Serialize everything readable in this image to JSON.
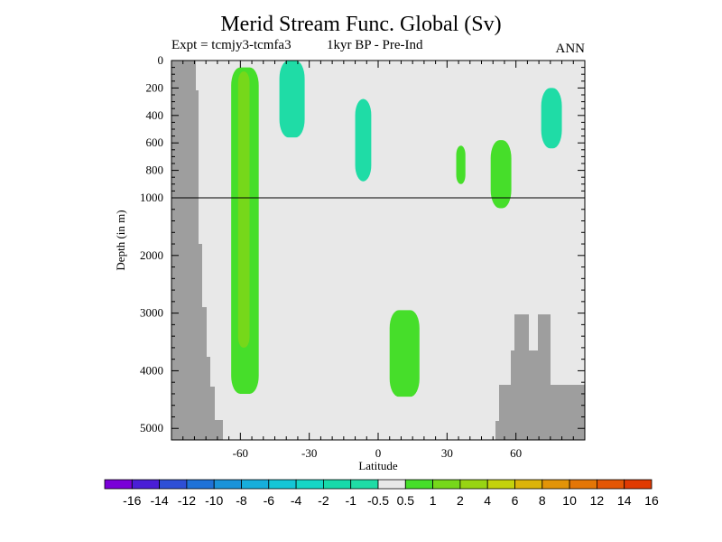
{
  "chart_data": {
    "type": "heatmap",
    "title": "Merid Stream Func. Global (Sv)",
    "subtitle_left": "Expt = tcmjy3-tcmfa3",
    "subtitle_mid": "1kyr BP - Pre-Ind",
    "subtitle_right": "ANN",
    "xlabel": "Latitude",
    "ylabel": "Depth (in m)",
    "xlim": [
      -90,
      90
    ],
    "x_ticks": [
      -60,
      -30,
      0,
      30,
      60
    ],
    "y_upper": {
      "range": [
        0,
        1000
      ],
      "ticks": [
        0,
        200,
        400,
        600,
        800,
        1000
      ]
    },
    "y_lower": {
      "range": [
        1000,
        5200
      ],
      "ticks": [
        2000,
        3000,
        4000,
        5000
      ]
    },
    "colorbar": {
      "labels": [
        "-16",
        "-14",
        "-12",
        "-10",
        "-8",
        "-6",
        "-4",
        "-2",
        "-1",
        "-0.5",
        "0.5",
        "1",
        "2",
        "4",
        "6",
        "8",
        "10",
        "12",
        "14",
        "16"
      ],
      "colors": [
        "#7a00d8",
        "#4a1ed6",
        "#2e4fd6",
        "#1f72d8",
        "#1a93d9",
        "#17aedb",
        "#15c6d6",
        "#16d6c6",
        "#17d9aa",
        "#1fdca6",
        "#e8e8e8",
        "#46de2a",
        "#76d81a",
        "#98d412",
        "#c4d20c",
        "#dcb40a",
        "#e29408",
        "#e47606",
        "#e45604",
        "#e03a02"
      ]
    },
    "background_color": "#e8e8e8",
    "land_color": "#9e9e9e",
    "anomalies": [
      {
        "level": "1 to 2",
        "color": "#76d81a",
        "lat_range": [
          -61,
          -56
        ],
        "depth_range": [
          80,
          3600
        ]
      },
      {
        "level": "0.5 to 1",
        "color": "#46de2a",
        "lat_range": [
          -64,
          -52
        ],
        "depth_range": [
          50,
          4400
        ]
      },
      {
        "level": "0.5 to 1",
        "color": "#46de2a",
        "lat_range": [
          5,
          18
        ],
        "depth_range": [
          2950,
          4450
        ]
      },
      {
        "level": "0.5 to 1",
        "color": "#46de2a",
        "lat_range": [
          49,
          58
        ],
        "depth_range": [
          580,
          1180
        ]
      },
      {
        "level": "0.5 to 1",
        "color": "#46de2a",
        "lat_range": [
          34,
          38
        ],
        "depth_range": [
          620,
          900
        ]
      },
      {
        "level": "-1 to -0.5",
        "color": "#1fdca6",
        "lat_range": [
          -43,
          -32
        ],
        "depth_range": [
          0,
          560
        ]
      },
      {
        "level": "-1 to -0.5",
        "color": "#1fdca6",
        "lat_range": [
          -10,
          -3
        ],
        "depth_range": [
          280,
          880
        ]
      },
      {
        "level": "-1 to -0.5",
        "color": "#1fdca6",
        "lat_range": [
          71,
          80
        ],
        "depth_range": [
          200,
          640
        ]
      }
    ]
  }
}
